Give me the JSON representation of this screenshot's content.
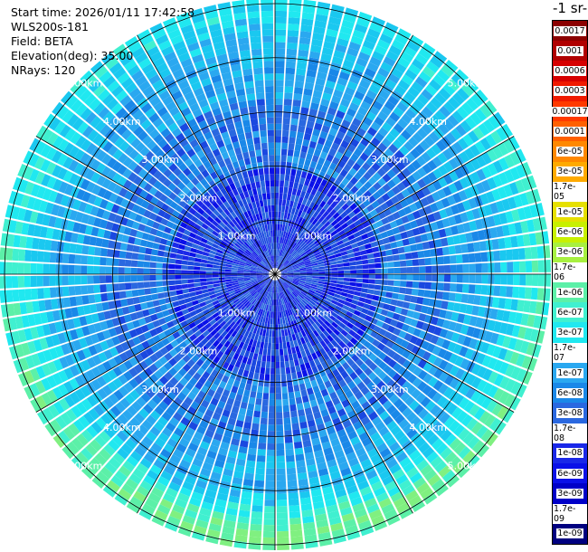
{
  "header": {
    "start_time": "Start time: 2026/01/11 17:42:58",
    "device": "WLS200s-181",
    "field": "Field: BETA",
    "elevation": "Elevation(deg): 35.00",
    "nrays": "NRays: 120"
  },
  "colorbar": {
    "title": "-1 sr-",
    "labels": [
      "0.0017",
      "0.001",
      "0.0006",
      "0.0003",
      "0.00017",
      "0.0001",
      "6e-05",
      "3e-05",
      "1.7e-05",
      "1e-05",
      "6e-06",
      "3e-06",
      "1.7e-06",
      "1e-06",
      "6e-07",
      "3e-07",
      "1.7e-07",
      "1e-07",
      "6e-08",
      "3e-08",
      "1.7e-08",
      "1e-08",
      "6e-09",
      "3e-09",
      "1.7e-09",
      "1e-09"
    ],
    "colors": [
      "#8b0000",
      "#b00000",
      "#d60000",
      "#f01a00",
      "#ff3a00",
      "#ff6000",
      "#ff8800",
      "#ffaa00",
      "#ffc800",
      "#e6e000",
      "#c8f000",
      "#a8f040",
      "#80f080",
      "#5cf0a8",
      "#40f0d0",
      "#20e8f0",
      "#1ac8f0",
      "#2aa8f0",
      "#1a88e8",
      "#2a68e0",
      "#1a48e0",
      "#1a28e8",
      "#0a10e8",
      "#0000c8",
      "#0000a0",
      "#000080"
    ]
  },
  "chart_data": {
    "type": "heatmap",
    "projection": "polar-ppi",
    "n_rays": 120,
    "range_rings_km": [
      1,
      2,
      3,
      4,
      5
    ],
    "range_ring_labels": [
      "1.00km",
      "2.00km",
      "3.00km",
      "4.00km",
      "5.00km"
    ],
    "max_range_km": 5.0,
    "spoke_step_deg": 30,
    "colorscale": "log",
    "value_range": [
      1e-09,
      0.0017
    ],
    "pattern": {
      "description_values": "background beta ~1e-08 to 6e-08; annulus ~4.5 km to 6 km ~1.7e-07 to 1e-06, strongest toward south",
      "near_field_value": 3e-08,
      "annulus_value": 1.7e-07
    }
  }
}
